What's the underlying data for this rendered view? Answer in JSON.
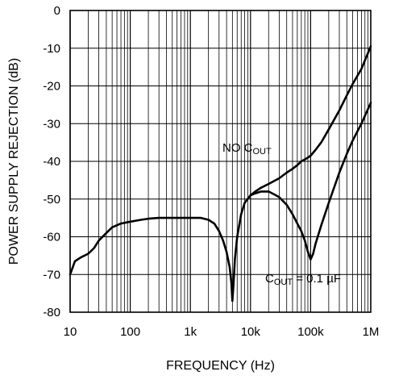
{
  "chart_data": {
    "type": "line",
    "title": "",
    "xlabel": "FREQUENCY (Hz)",
    "ylabel": "POWER SUPPLY REJECTION (dB)",
    "xscale": "log",
    "xlim": [
      10,
      1000000
    ],
    "ylim": [
      -80,
      0
    ],
    "grid": true,
    "x_ticks": [
      {
        "value": 10,
        "label": "10"
      },
      {
        "value": 100,
        "label": "100"
      },
      {
        "value": 1000,
        "label": "1k"
      },
      {
        "value": 10000,
        "label": "10k"
      },
      {
        "value": 100000,
        "label": "100k"
      },
      {
        "value": 1000000,
        "label": "1M"
      }
    ],
    "y_ticks": [
      {
        "value": 0,
        "label": "0"
      },
      {
        "value": -10,
        "label": "-10"
      },
      {
        "value": -20,
        "label": "-20"
      },
      {
        "value": -30,
        "label": "-30"
      },
      {
        "value": -40,
        "label": "-40"
      },
      {
        "value": -50,
        "label": "-50"
      },
      {
        "value": -60,
        "label": "-60"
      },
      {
        "value": -70,
        "label": "-70"
      },
      {
        "value": -80,
        "label": "-80"
      }
    ],
    "annotations": [
      {
        "id": "no-cout",
        "main": "NO C",
        "sub": "OUT",
        "rest": ""
      },
      {
        "id": "cout",
        "main": "C",
        "sub": "OUT",
        "rest": " = 0.1 µF"
      }
    ],
    "series": [
      {
        "id": "no_cout",
        "x": [
          10,
          12,
          15,
          20,
          25,
          30,
          40,
          50,
          70,
          100,
          150,
          200,
          300,
          500,
          700,
          1000,
          1500,
          2000,
          2500,
          3000,
          3500,
          4000,
          4500,
          4800,
          5000,
          5200,
          5500,
          6000,
          7000,
          8000,
          10000,
          12000,
          15000,
          20000,
          30000,
          40000,
          50000,
          60000,
          70000,
          80000,
          90000,
          100000,
          120000,
          150000,
          200000,
          300000,
          400000,
          500000,
          700000,
          1000000
        ],
        "values": [
          -70,
          -66.5,
          -65.5,
          -64.5,
          -63,
          -61,
          -59,
          -57.5,
          -56.5,
          -56,
          -55.5,
          -55.2,
          -55,
          -55,
          -55,
          -55,
          -55,
          -55.5,
          -56.5,
          -58.5,
          -61,
          -64,
          -68,
          -72,
          -77,
          -73,
          -66,
          -60,
          -54,
          -51,
          -49,
          -48,
          -47,
          -46,
          -44.5,
          -43,
          -42,
          -41,
          -40,
          -39.5,
          -39,
          -38.5,
          -37,
          -35,
          -31.5,
          -26.5,
          -22.5,
          -19.5,
          -15.5,
          -9.5
        ]
      },
      {
        "id": "cout_01uf",
        "x": [
          10000,
          12000,
          15000,
          20000,
          25000,
          30000,
          40000,
          50000,
          60000,
          70000,
          80000,
          90000,
          100000,
          110000,
          120000,
          150000,
          200000,
          300000,
          400000,
          500000,
          700000,
          1000000
        ],
        "values": [
          -49,
          -48.5,
          -48,
          -48,
          -48.8,
          -49.5,
          -51.5,
          -54,
          -56.5,
          -58.5,
          -61,
          -64,
          -66,
          -64.5,
          -62,
          -57,
          -51,
          -43,
          -38,
          -34.5,
          -30,
          -24.5
        ]
      }
    ]
  }
}
